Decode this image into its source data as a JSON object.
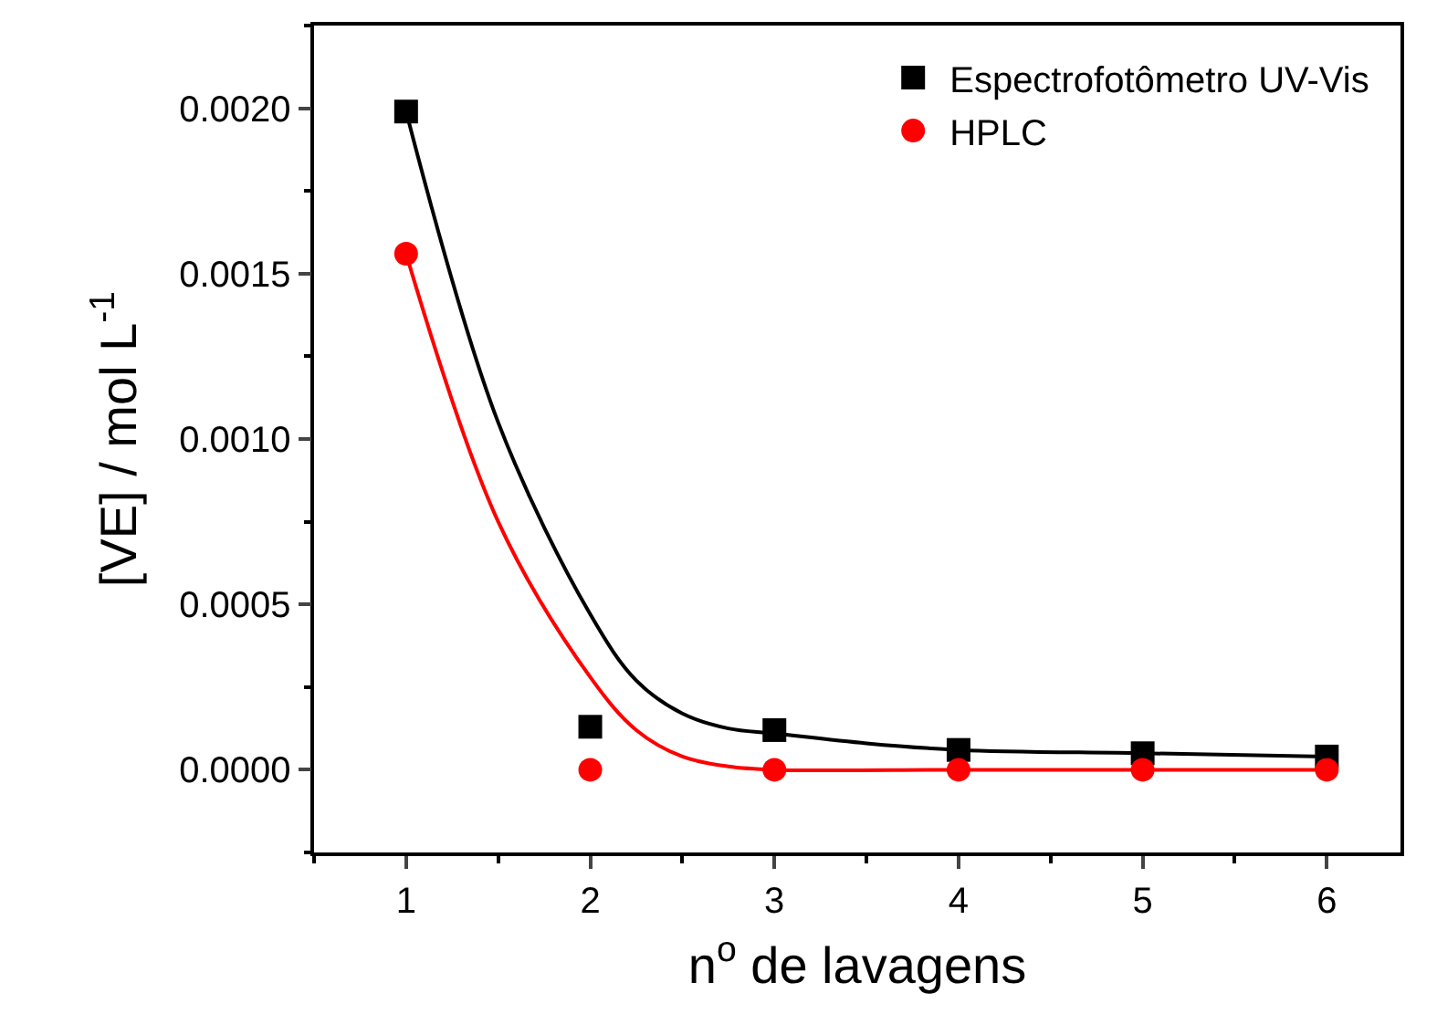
{
  "chart_data": {
    "type": "scatter",
    "xlabel": "n$^{o}$ de lavagens",
    "ylabel": "[VE] / mol L$^{-1}$",
    "x": [
      1,
      2,
      3,
      4,
      5,
      6
    ],
    "xlim": [
      0.5,
      6.4
    ],
    "xticks": [
      1,
      2,
      3,
      4,
      5,
      6
    ],
    "ylim": [
      -0.00025,
      0.00225
    ],
    "yticks": [
      {
        "value": 0,
        "label": "0.0000"
      },
      {
        "value": 0.0005,
        "label": "0.0005"
      },
      {
        "value": 0.001,
        "label": "0.0010"
      },
      {
        "value": 0.0015,
        "label": "0.0015"
      },
      {
        "value": 0.002,
        "label": "0.0020"
      }
    ],
    "legend": "top right",
    "series": [
      {
        "name": "Espectrofotômetro UV-Vis",
        "color": "#000000",
        "marker": "square",
        "values": [
          0.00199,
          0.00013,
          0.00012,
          6e-05,
          5e-05,
          4e-05
        ]
      },
      {
        "name": "HPLC",
        "color": "#ff0000",
        "marker": "circle",
        "values": [
          0.00156,
          0.0,
          0.0,
          0.0,
          0.0,
          0.0
        ]
      },
      {
        "type": "line",
        "color": "#000000",
        "marker": "none",
        "x": [
          1,
          1.5,
          2,
          2.25,
          2.5,
          2.75,
          3,
          3.5,
          4,
          5,
          6
        ],
        "values": [
          0.00199,
          0.00105,
          0.00047,
          0.00027,
          0.00017,
          0.000125,
          0.00011,
          8e-05,
          6e-05,
          5e-05,
          4e-05
        ]
      },
      {
        "type": "line",
        "color": "#ff0000",
        "marker": "none",
        "x": [
          1,
          1.5,
          2,
          2.25,
          2.5,
          2.75,
          3,
          4,
          5,
          6
        ],
        "values": [
          0.00156,
          0.00075,
          0.00028,
          0.00012,
          4e-05,
          1e-05,
          0.0,
          0.0,
          0.0,
          0.0
        ]
      }
    ]
  }
}
